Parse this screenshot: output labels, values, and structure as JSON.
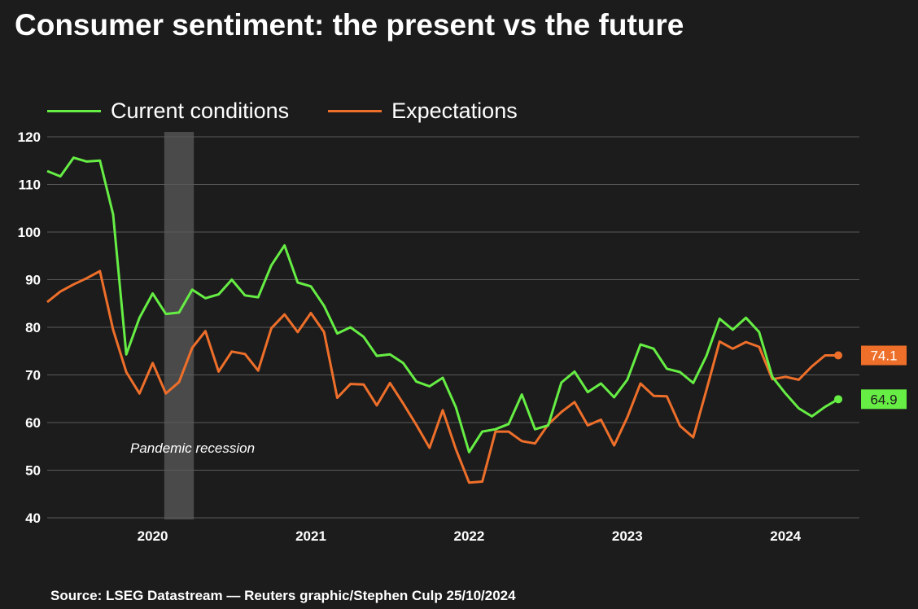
{
  "title": "Consumer sentiment: the present vs the future",
  "source": "Source: LSEG Datastream — Reuters graphic/Stephen Culp 25/10/2024",
  "colors": {
    "background": "#1c1c1c",
    "grid": "#5a5a5a",
    "current": "#66ee44",
    "expectations": "#ee6f2a",
    "recession_band": "#5a5a5a"
  },
  "chart_data": {
    "type": "line",
    "x_unit": "months",
    "x_start": "2019-05",
    "ylim": [
      40,
      120
    ],
    "y_ticks": [
      40,
      50,
      60,
      70,
      80,
      90,
      100,
      110,
      120
    ],
    "x_ticks": [
      {
        "label": "2020",
        "date": "2020-01"
      },
      {
        "label": "2021",
        "date": "2021-01"
      },
      {
        "label": "2022",
        "date": "2022-01"
      },
      {
        "label": "2023",
        "date": "2023-01"
      },
      {
        "label": "2024",
        "date": "2024-01"
      }
    ],
    "grid": true,
    "legend": "top-left",
    "annotation": {
      "text": "Pandemic recession",
      "start": "2020-02",
      "end": "2020-04"
    },
    "series": [
      {
        "name": "Current conditions",
        "color": "#66ee44",
        "last_label": "64.9",
        "values": [
          112.8,
          111.7,
          115.6,
          114.8,
          115.0,
          103.7,
          74.3,
          82.0,
          87.1,
          82.8,
          83.1,
          87.9,
          86.1,
          86.9,
          90.0,
          86.7,
          86.3,
          93.0,
          97.2,
          89.4,
          88.6,
          84.5,
          78.7,
          80.0,
          78.0,
          74.0,
          74.3,
          72.5,
          68.6,
          67.6,
          69.4,
          63.2,
          53.8,
          58.1,
          58.6,
          59.7,
          65.9,
          58.6,
          59.4,
          68.4,
          70.7,
          66.4,
          68.2,
          65.3,
          69.0,
          76.4,
          75.5,
          71.3,
          70.6,
          68.3,
          74.0,
          81.8,
          79.5,
          82.0,
          79.0,
          69.6,
          66.1,
          63.0,
          61.3,
          63.3,
          64.9
        ]
      },
      {
        "name": "Expectations",
        "color": "#ee6f2a",
        "last_label": "74.1",
        "values": [
          85.3,
          87.5,
          89.0,
          90.3,
          91.8,
          79.5,
          70.6,
          66.1,
          72.5,
          66.1,
          68.5,
          75.7,
          79.2,
          70.7,
          74.9,
          74.4,
          70.9,
          79.8,
          82.7,
          79.0,
          83.0,
          79.0,
          65.2,
          68.1,
          68.0,
          63.6,
          68.3,
          64.0,
          59.5,
          54.7,
          62.6,
          54.4,
          47.4,
          47.6,
          58.1,
          58.1,
          56.1,
          55.6,
          59.6,
          62.2,
          64.3,
          59.4,
          60.6,
          55.2,
          61.1,
          68.2,
          65.6,
          65.5,
          59.3,
          56.9,
          66.8,
          77.0,
          75.5,
          76.9,
          75.9,
          69.1,
          69.6,
          69.0,
          71.8,
          74.1,
          74.1
        ]
      }
    ]
  }
}
